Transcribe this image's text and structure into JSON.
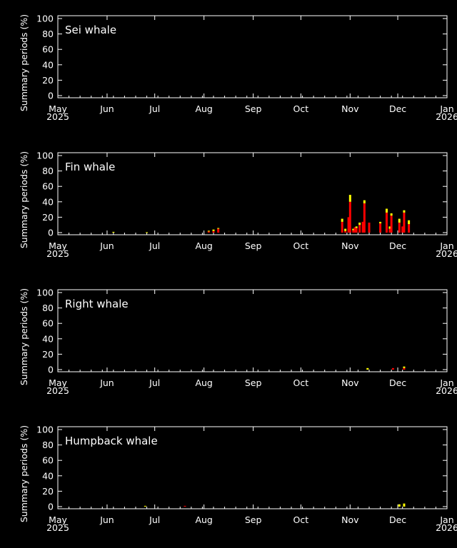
{
  "chart_data": [
    {
      "type": "bar",
      "title": "Sei whale",
      "ylabel": "Summary periods (%)",
      "ylim": [
        0,
        100
      ],
      "y_ticks": [
        "0",
        "20",
        "40",
        "60",
        "80",
        "100"
      ],
      "x_ticks": [
        {
          "month": "May",
          "year": "2025"
        },
        {
          "month": "Jun"
        },
        {
          "month": "Jul"
        },
        {
          "month": "Aug"
        },
        {
          "month": "Sep"
        },
        {
          "month": "Oct"
        },
        {
          "month": "Nov"
        },
        {
          "month": "Dec"
        },
        {
          "month": "Jan",
          "year": "2026"
        }
      ],
      "xlim": [
        "2025-05-01",
        "2026-01-01"
      ],
      "grid": false,
      "series_colors": {
        "red": "#ff0000",
        "yellow": "#ffff00"
      },
      "bars": []
    },
    {
      "type": "bar",
      "title": "Fin whale",
      "ylabel": "Summary periods (%)",
      "ylim": [
        0,
        100
      ],
      "y_ticks": [
        "0",
        "20",
        "40",
        "60",
        "80",
        "100"
      ],
      "x_ticks": [
        {
          "month": "May",
          "year": "2025"
        },
        {
          "month": "Jun"
        },
        {
          "month": "Jul"
        },
        {
          "month": "Aug"
        },
        {
          "month": "Sep"
        },
        {
          "month": "Oct"
        },
        {
          "month": "Nov"
        },
        {
          "month": "Dec"
        },
        {
          "month": "Jan",
          "year": "2026"
        }
      ],
      "xlim": [
        "2025-05-01",
        "2026-01-01"
      ],
      "grid": false,
      "series_colors": {
        "red": "#ff0000",
        "yellow": "#ffff00"
      },
      "bars": [
        {
          "date": "2025-06-05",
          "red": 0,
          "yellow": 1
        },
        {
          "date": "2025-06-26",
          "red": 0,
          "yellow": 0.5
        },
        {
          "date": "2025-08-04",
          "red": 1.5,
          "yellow": 1
        },
        {
          "date": "2025-08-07",
          "red": 2,
          "yellow": 2
        },
        {
          "date": "2025-08-10",
          "red": 5,
          "yellow": 1
        },
        {
          "date": "2025-10-27",
          "red": 14,
          "yellow": 4
        },
        {
          "date": "2025-10-29",
          "red": 2,
          "yellow": 3
        },
        {
          "date": "2025-10-31",
          "red": 20,
          "yellow": 0
        },
        {
          "date": "2025-11-01",
          "red": 40,
          "yellow": 9
        },
        {
          "date": "2025-11-03",
          "red": 3,
          "yellow": 2
        },
        {
          "date": "2025-11-04",
          "red": 7,
          "yellow": 0
        },
        {
          "date": "2025-11-05",
          "red": 6,
          "yellow": 2
        },
        {
          "date": "2025-11-07",
          "red": 10,
          "yellow": 3
        },
        {
          "date": "2025-11-09",
          "red": 14,
          "yellow": 0
        },
        {
          "date": "2025-11-10",
          "red": 38,
          "yellow": 4
        },
        {
          "date": "2025-11-13",
          "red": 13,
          "yellow": 0
        },
        {
          "date": "2025-11-20",
          "red": 12,
          "yellow": 2
        },
        {
          "date": "2025-11-24",
          "red": 26,
          "yellow": 5
        },
        {
          "date": "2025-11-26",
          "red": 5,
          "yellow": 3
        },
        {
          "date": "2025-11-27",
          "red": 22,
          "yellow": 3
        },
        {
          "date": "2025-12-02",
          "red": 13,
          "yellow": 5
        },
        {
          "date": "2025-12-04",
          "red": 8,
          "yellow": 0
        },
        {
          "date": "2025-12-05",
          "red": 26,
          "yellow": 3
        },
        {
          "date": "2025-12-08",
          "red": 11,
          "yellow": 5
        }
      ]
    },
    {
      "type": "bar",
      "title": "Right whale",
      "ylabel": "Summary periods (%)",
      "ylim": [
        0,
        100
      ],
      "y_ticks": [
        "0",
        "20",
        "40",
        "60",
        "80",
        "100"
      ],
      "x_ticks": [
        {
          "month": "May",
          "year": "2025"
        },
        {
          "month": "Jun"
        },
        {
          "month": "Jul"
        },
        {
          "month": "Aug"
        },
        {
          "month": "Sep"
        },
        {
          "month": "Oct"
        },
        {
          "month": "Nov"
        },
        {
          "month": "Dec"
        },
        {
          "month": "Jan",
          "year": "2026"
        }
      ],
      "xlim": [
        "2025-05-01",
        "2026-01-01"
      ],
      "grid": false,
      "series_colors": {
        "red": "#ff0000",
        "yellow": "#ffff00"
      },
      "bars": [
        {
          "date": "2025-11-12",
          "red": 0,
          "yellow": 2
        },
        {
          "date": "2025-11-28",
          "red": 2,
          "yellow": 0
        },
        {
          "date": "2025-12-05",
          "red": 2,
          "yellow": 2
        }
      ]
    },
    {
      "type": "bar",
      "title": "Humpback whale",
      "ylabel": "Summary periods (%)",
      "ylim": [
        0,
        100
      ],
      "y_ticks": [
        "0",
        "20",
        "40",
        "60",
        "80",
        "100"
      ],
      "x_ticks": [
        {
          "month": "May",
          "year": "2025"
        },
        {
          "month": "Jun"
        },
        {
          "month": "Jul"
        },
        {
          "month": "Aug"
        },
        {
          "month": "Sep"
        },
        {
          "month": "Oct"
        },
        {
          "month": "Nov"
        },
        {
          "month": "Dec"
        },
        {
          "month": "Jan",
          "year": "2026"
        }
      ],
      "xlim": [
        "2025-05-01",
        "2026-01-01"
      ],
      "grid": false,
      "series_colors": {
        "red": "#ff0000",
        "yellow": "#ffff00"
      },
      "bars": [
        {
          "date": "2025-06-25",
          "red": 0,
          "yellow": 1
        },
        {
          "date": "2025-07-20",
          "red": 1,
          "yellow": 0
        },
        {
          "date": "2025-12-02",
          "red": 0,
          "yellow": 3
        },
        {
          "date": "2025-12-05",
          "red": 0,
          "yellow": 4
        }
      ]
    }
  ]
}
